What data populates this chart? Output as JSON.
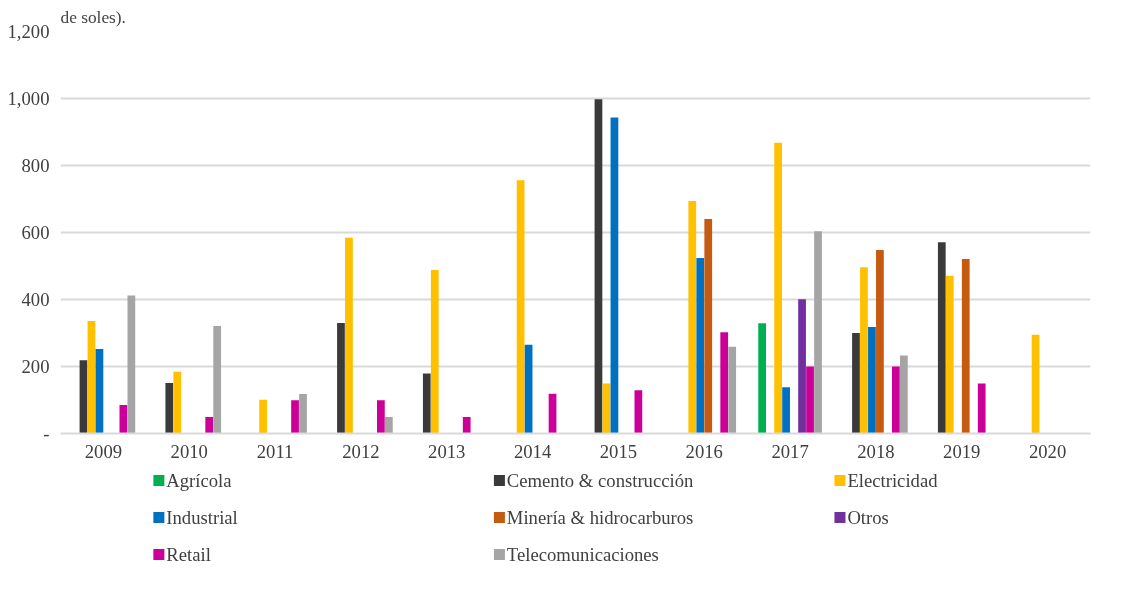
{
  "chart_data": {
    "type": "bar",
    "title": "de soles).",
    "categories": [
      "2009",
      "2010",
      "2011",
      "2012",
      "2013",
      "2014",
      "2015",
      "2016",
      "2017",
      "2018",
      "2019",
      "2020"
    ],
    "series": [
      {
        "name": "Agrícola",
        "color": "#00b050",
        "values": [
          null,
          null,
          null,
          null,
          null,
          null,
          null,
          null,
          329,
          null,
          null,
          null
        ]
      },
      {
        "name": "Cemento & construcción",
        "color": "#3a3a3a",
        "values": [
          219,
          151,
          null,
          330,
          179,
          null,
          998,
          null,
          null,
          300,
          571,
          null
        ]
      },
      {
        "name": "Electricidad",
        "color": "#ffc000",
        "values": [
          336,
          184,
          101,
          584,
          488,
          756,
          149,
          694,
          868,
          496,
          471,
          295
        ]
      },
      {
        "name": "Industrial",
        "color": "#0070c0",
        "values": [
          252,
          null,
          null,
          null,
          null,
          265,
          943,
          524,
          138,
          318,
          null,
          null
        ]
      },
      {
        "name": "Minería & hidrocarburos",
        "color": "#c55a11",
        "values": [
          null,
          null,
          null,
          null,
          null,
          null,
          null,
          640,
          null,
          548,
          521,
          null
        ]
      },
      {
        "name": "Otros",
        "color": "#7030a0",
        "values": [
          null,
          null,
          null,
          null,
          null,
          null,
          null,
          null,
          401,
          null,
          null,
          null
        ]
      },
      {
        "name": "Retail",
        "color": "#cc0099",
        "values": [
          85,
          49,
          99,
          99,
          49,
          119,
          129,
          302,
          200,
          200,
          149,
          null
        ]
      },
      {
        "name": "Telecomunicaciones",
        "color": "#a5a5a5",
        "values": [
          412,
          321,
          118,
          49,
          null,
          null,
          null,
          259,
          604,
          233,
          null,
          null
        ]
      }
    ],
    "ylim": [
      0,
      1200
    ],
    "yticks": [
      {
        "value": 0,
        "label": "-"
      },
      {
        "value": 200,
        "label": "200"
      },
      {
        "value": 400,
        "label": "400"
      },
      {
        "value": 600,
        "label": "600"
      },
      {
        "value": 800,
        "label": "800"
      },
      {
        "value": 1000,
        "label": "1,000"
      },
      {
        "value": 1200,
        "label": "1,200"
      }
    ],
    "grid": "y",
    "legend": "bottom"
  }
}
